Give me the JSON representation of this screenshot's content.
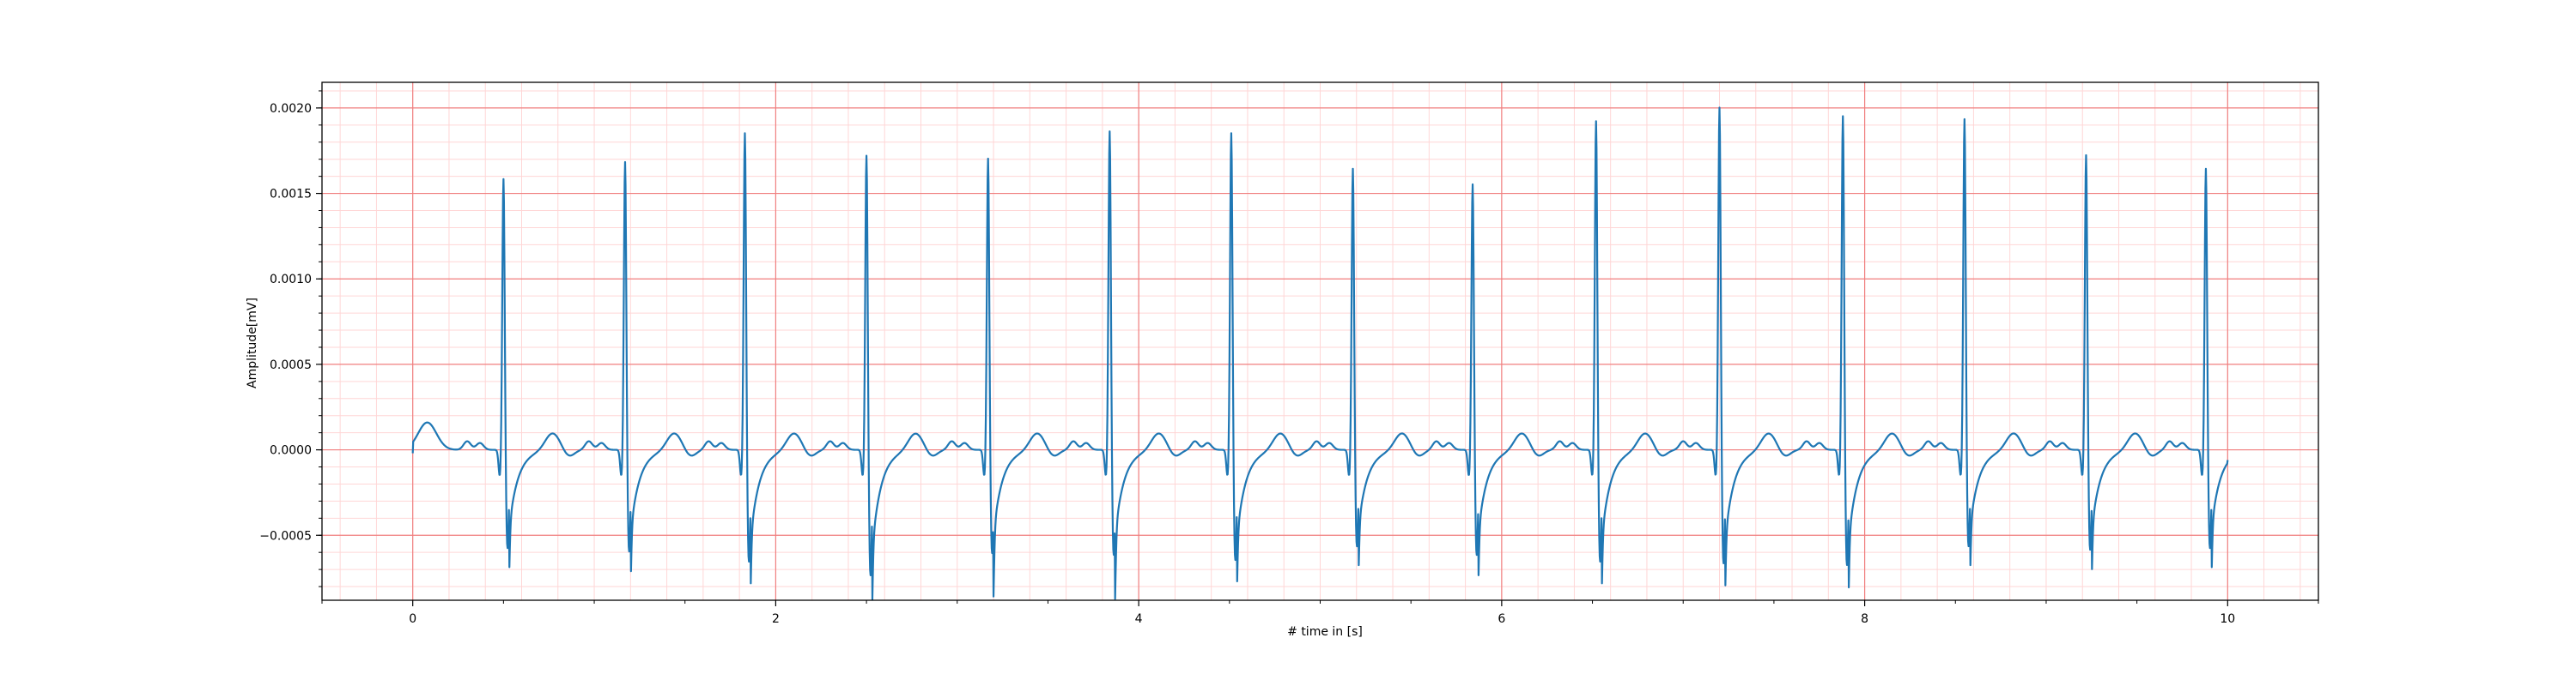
{
  "chart_data": {
    "type": "line",
    "title": "",
    "xlabel": "# time in [s]",
    "ylabel": "Amplitude[mV]",
    "xlim": [
      -0.5,
      10.5
    ],
    "ylim": [
      -0.00088,
      0.00215
    ],
    "x_ticks": [
      0,
      2,
      4,
      6,
      8,
      10
    ],
    "x_tick_labels": [
      "0",
      "2",
      "4",
      "6",
      "8",
      "10"
    ],
    "y_ticks": [
      -0.0005,
      0.0,
      0.0005,
      0.001,
      0.0015,
      0.002
    ],
    "y_tick_labels": [
      "−0.0005",
      "0.0000",
      "0.0005",
      "0.0010",
      "0.0015",
      "0.0020"
    ],
    "grid": "on",
    "major_grid_color": "#f08080",
    "minor_grid_color": "#ffd6d6",
    "line_color": "#1f77b4",
    "series": [
      {
        "beats": [
          {
            "t": 0.5,
            "r": 0.0016,
            "s": -0.00058
          },
          {
            "t": 1.17,
            "r": 0.0017,
            "s": -0.0006
          },
          {
            "t": 1.83,
            "r": 0.00187,
            "s": -0.00066
          },
          {
            "t": 2.5,
            "r": 0.00174,
            "s": -0.00074
          },
          {
            "t": 3.17,
            "r": 0.00172,
            "s": -0.00061
          },
          {
            "t": 3.84,
            "r": 0.00188,
            "s": -0.00062
          },
          {
            "t": 4.51,
            "r": 0.00187,
            "s": -0.00065
          },
          {
            "t": 5.18,
            "r": 0.00166,
            "s": -0.00057
          },
          {
            "t": 5.84,
            "r": 0.00157,
            "s": -0.00062
          },
          {
            "t": 6.52,
            "r": 0.00194,
            "s": -0.00066
          },
          {
            "t": 7.2,
            "r": 0.00202,
            "s": -0.00067
          },
          {
            "t": 7.88,
            "r": 0.00197,
            "s": -0.00068
          },
          {
            "t": 8.55,
            "r": 0.00195,
            "s": -0.00057
          },
          {
            "t": 9.22,
            "r": 0.00174,
            "s": -0.00059
          },
          {
            "t": 9.88,
            "r": 0.00166,
            "s": -0.00058
          }
        ],
        "p_wave_amplitude": 4e-05,
        "t_wave_amplitude": 0.0001,
        "start": [
          0.0,
          -2e-05
        ],
        "end": [
          10.0,
          -6e-05
        ]
      }
    ]
  }
}
